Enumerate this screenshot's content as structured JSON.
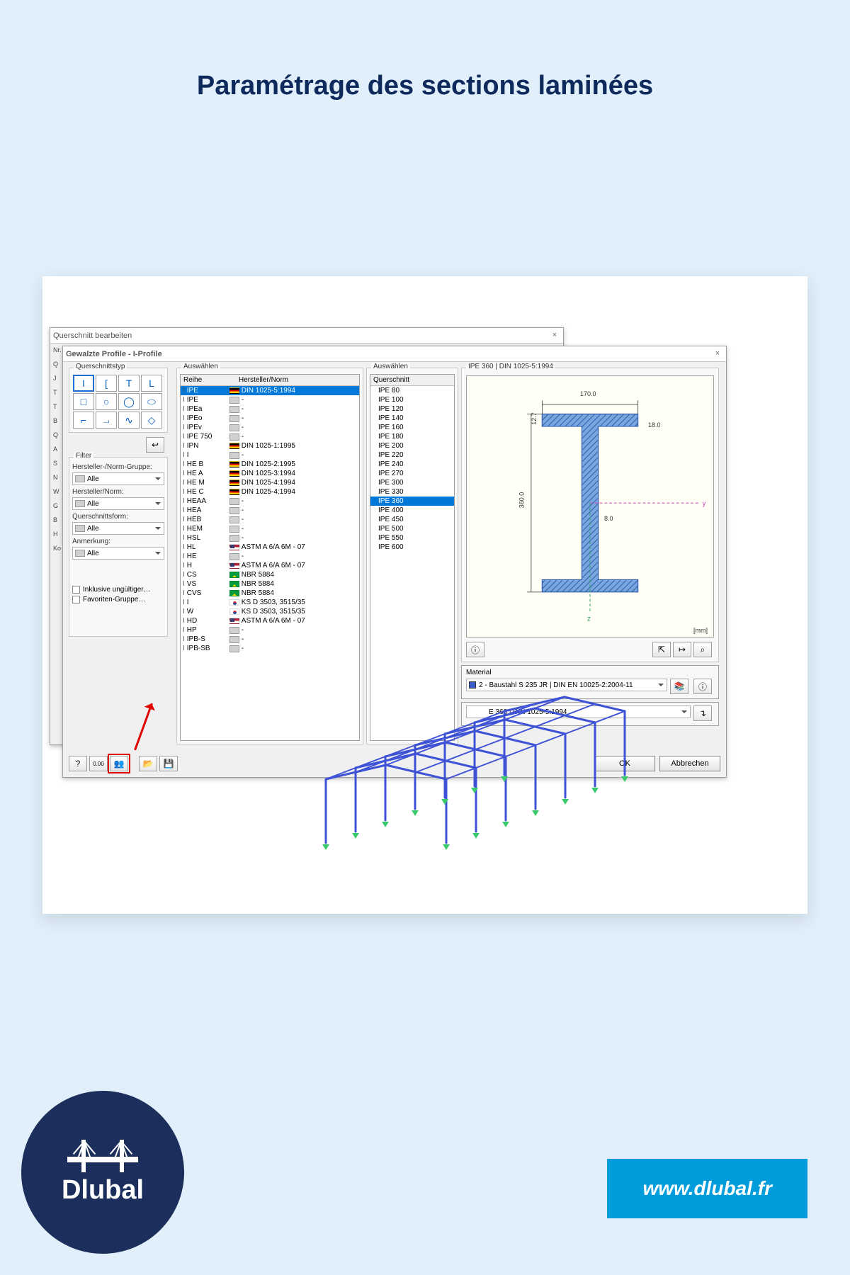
{
  "page": {
    "title": "Paramétrage des sections laminées"
  },
  "branding": {
    "logo_text": "Dlubal",
    "url": "www.dlubal.fr"
  },
  "dialog_back": {
    "title": "Querschnitt bearbeiten",
    "left_strip": [
      "Nr.",
      "Q",
      "J",
      "T",
      "T",
      "B",
      "Q",
      "A",
      "S",
      "N",
      "W",
      "G",
      "B",
      "H",
      "Ko"
    ]
  },
  "dialog_main": {
    "title": "Gewalzte Profile - I-Profile",
    "groups": {
      "shape_type": "Querschnittstyp",
      "filter": "Filter",
      "aus1": "Auswählen",
      "aus2": "Auswählen",
      "preview_title": "IPE 360 | DIN 1025-5:1994"
    },
    "shape_glyphs": [
      "I",
      "[",
      "T",
      "L",
      "□",
      "○",
      "◯",
      "⬭",
      "⌐",
      "⏗",
      "∿",
      "◇"
    ],
    "filter": {
      "l_norm_gruppe": "Hersteller-/Norm-Gruppe:",
      "l_norm": "Hersteller/Norm:",
      "l_form": "Querschnittsform:",
      "l_anm": "Anmerkung:",
      "val_alle": "Alle",
      "chk_invalid": "Inklusive ungültiger…",
      "chk_fav": "Favoriten-Gruppe…"
    },
    "col_reihe_header": "Reihe",
    "col_norm_header": "Hersteller/Norm",
    "col_q_header": "Querschnitt",
    "reihe": [
      {
        "n": "IPE",
        "f": "de",
        "norm": "DIN 1025-5:1994",
        "sel": true
      },
      {
        "n": "IPE",
        "f": "",
        "norm": "-"
      },
      {
        "n": "IPEa",
        "f": "",
        "norm": "-"
      },
      {
        "n": "IPEo",
        "f": "",
        "norm": "-"
      },
      {
        "n": "IPEv",
        "f": "",
        "norm": "-"
      },
      {
        "n": "IPE 750",
        "f": "",
        "norm": "-"
      },
      {
        "n": "IPN",
        "f": "de",
        "norm": "DIN 1025-1:1995"
      },
      {
        "n": "I",
        "f": "",
        "norm": "-"
      },
      {
        "n": "HE B",
        "f": "de",
        "norm": "DIN 1025-2:1995"
      },
      {
        "n": "HE A",
        "f": "de",
        "norm": "DIN 1025-3:1994"
      },
      {
        "n": "HE M",
        "f": "de",
        "norm": "DIN 1025-4:1994"
      },
      {
        "n": "HE C",
        "f": "de",
        "norm": "DIN 1025-4:1994"
      },
      {
        "n": "HEAA",
        "f": "",
        "norm": "-"
      },
      {
        "n": "HEA",
        "f": "",
        "norm": "-"
      },
      {
        "n": "HEB",
        "f": "",
        "norm": "-"
      },
      {
        "n": "HEM",
        "f": "",
        "norm": "-"
      },
      {
        "n": "HSL",
        "f": "",
        "norm": "-"
      },
      {
        "n": "HL",
        "f": "us",
        "norm": "ASTM A 6/A 6M - 07"
      },
      {
        "n": "HE",
        "f": "",
        "norm": "-"
      },
      {
        "n": "H",
        "f": "us",
        "norm": "ASTM A 6/A 6M - 07"
      },
      {
        "n": "CS",
        "f": "br",
        "norm": "NBR 5884"
      },
      {
        "n": "VS",
        "f": "br",
        "norm": "NBR 5884"
      },
      {
        "n": "CVS",
        "f": "br",
        "norm": "NBR 5884"
      },
      {
        "n": "I",
        "f": "kr",
        "norm": "KS D 3503, 3515/35"
      },
      {
        "n": "W",
        "f": "kr",
        "norm": "KS D 3503, 3515/35"
      },
      {
        "n": "HD",
        "f": "us",
        "norm": "ASTM A 6/A 6M - 07"
      },
      {
        "n": "HP",
        "f": "",
        "norm": "-"
      },
      {
        "n": "IPB-S",
        "f": "",
        "norm": "-"
      },
      {
        "n": "IPB-SB",
        "f": "",
        "norm": "-"
      }
    ],
    "querschnitt": [
      "IPE 80",
      "IPE 100",
      "IPE 120",
      "IPE 140",
      "IPE 160",
      "IPE 180",
      "IPE 200",
      "IPE 220",
      "IPE 240",
      "IPE 270",
      "IPE 300",
      "IPE 330",
      "IPE 360",
      "IPE 400",
      "IPE 450",
      "IPE 500",
      "IPE 550",
      "IPE 600"
    ],
    "q_selected": "IPE 360",
    "ibeam": {
      "width": "170.0",
      "height": "360.0",
      "tf": "12.7",
      "tw": "8.0",
      "r": "18.0",
      "unit": "[mm]"
    },
    "material": {
      "label": "Material",
      "value": "2 - Baustahl S 235 JR | DIN EN 10025-2:2004-11"
    },
    "summary": "E 360 | DIN 1025-5:1994",
    "btn_ok": "OK",
    "btn_cancel": "Abbrechen"
  }
}
